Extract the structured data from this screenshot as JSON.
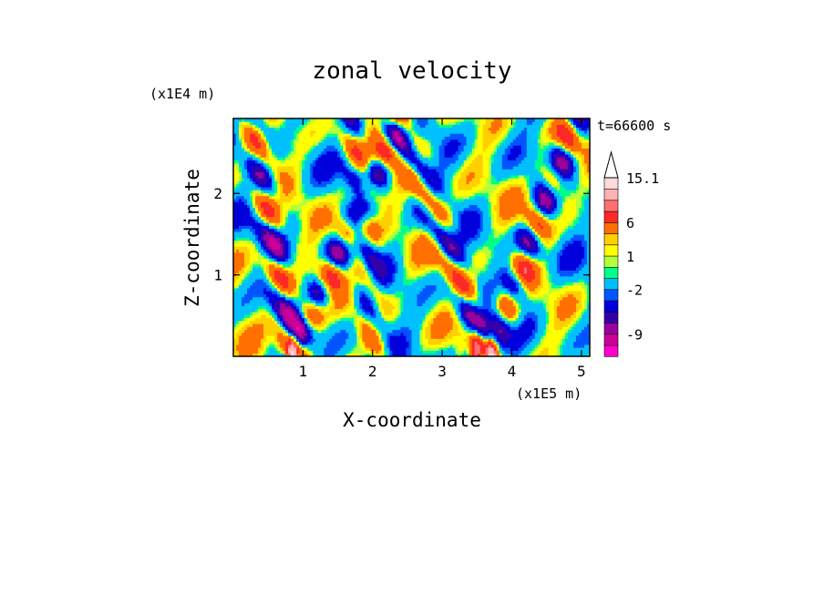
{
  "chart_data": {
    "type": "heatmap",
    "title": "zonal velocity",
    "xlabel": "X-coordinate",
    "ylabel": "Z-coordinate",
    "x_unit": "(x1E5 m)",
    "y_unit": "(x1E4 m)",
    "time_label": "t=66600 s",
    "xlim": [
      0,
      5.12
    ],
    "ylim": [
      0,
      2.92
    ],
    "x_ticks": [
      1,
      2,
      3,
      4,
      5
    ],
    "x_tick_labels": [
      "1",
      "2",
      "3",
      "4",
      "5"
    ],
    "y_ticks": [
      1,
      2
    ],
    "y_tick_labels": [
      "1",
      "2"
    ],
    "colorbar": {
      "levels": [
        -13,
        -11,
        -9,
        -7,
        -5,
        -3,
        -2,
        0,
        0.5,
        1,
        2,
        3,
        6,
        9,
        12,
        15.1
      ],
      "colors": [
        "#ff00cc",
        "#cc0099",
        "#99009f",
        "#3300aa",
        "#0000dd",
        "#0055ff",
        "#00c0ff",
        "#00ff88",
        "#b4ff3c",
        "#ffff00",
        "#ffd000",
        "#ff7000",
        "#ff2828",
        "#ff7070",
        "#ffb4b4",
        "#ffdada"
      ],
      "tick_values": [
        15.1,
        6,
        1,
        -2,
        -9
      ],
      "tick_labels": [
        "15.1",
        "6",
        "1",
        "-2",
        "-9"
      ],
      "extend": "max"
    },
    "notes": "Field values approximated from the visible color pattern: V-shaped wave beams rising from sources near x=0.8 and x=3.7 (x1E5 m), with small-scale features near x=2.1."
  }
}
